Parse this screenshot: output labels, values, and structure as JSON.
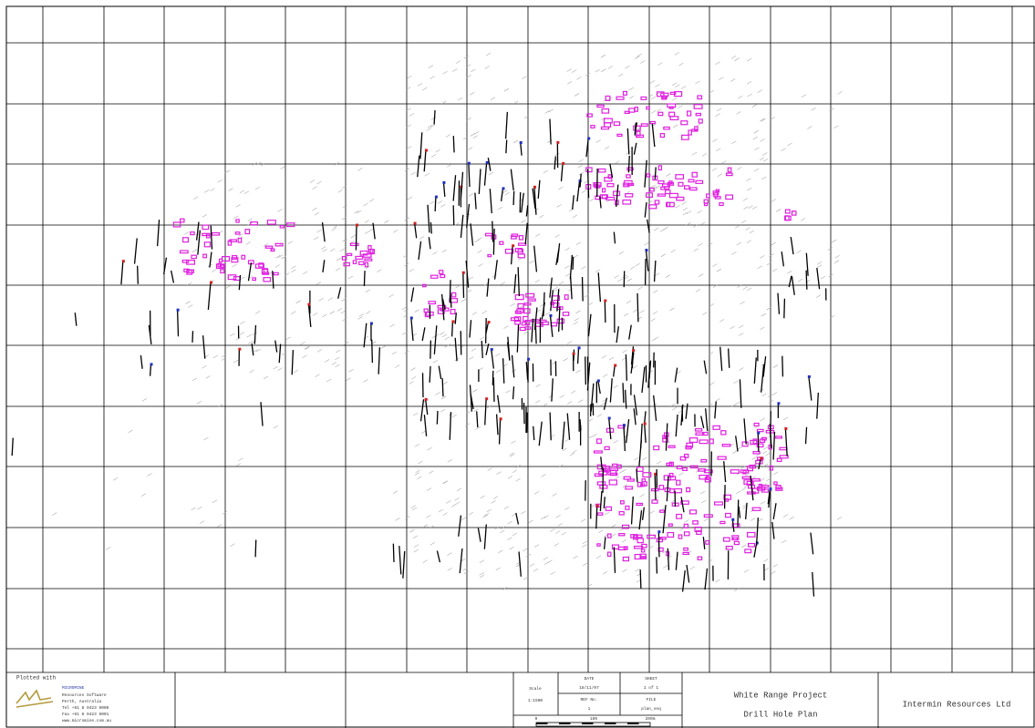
{
  "title_block": {
    "plotted_with": "Plotted with",
    "software": {
      "name": "MICROMINE",
      "lines": [
        "Resources Software",
        "Perth, Australia",
        "Tel +61 8 9423 9000",
        "Fax +61 8 9423 9001",
        "www.micromine.com.au"
      ]
    },
    "scale_label": "Scale",
    "scale": "1:1500",
    "date_label": "DATE",
    "date": "18/11/07",
    "sheet_label": "SHEET",
    "sheet": "1 of 1",
    "ref_label": "REF No.",
    "ref": "1",
    "file_label": "FILE",
    "file": "plan_seq",
    "scale_bar": [
      "0",
      "100",
      "200m"
    ],
    "project": "White Range Project",
    "drawing": "Drill Hole Plan",
    "company": "Intermin Resources Ltd"
  }
}
